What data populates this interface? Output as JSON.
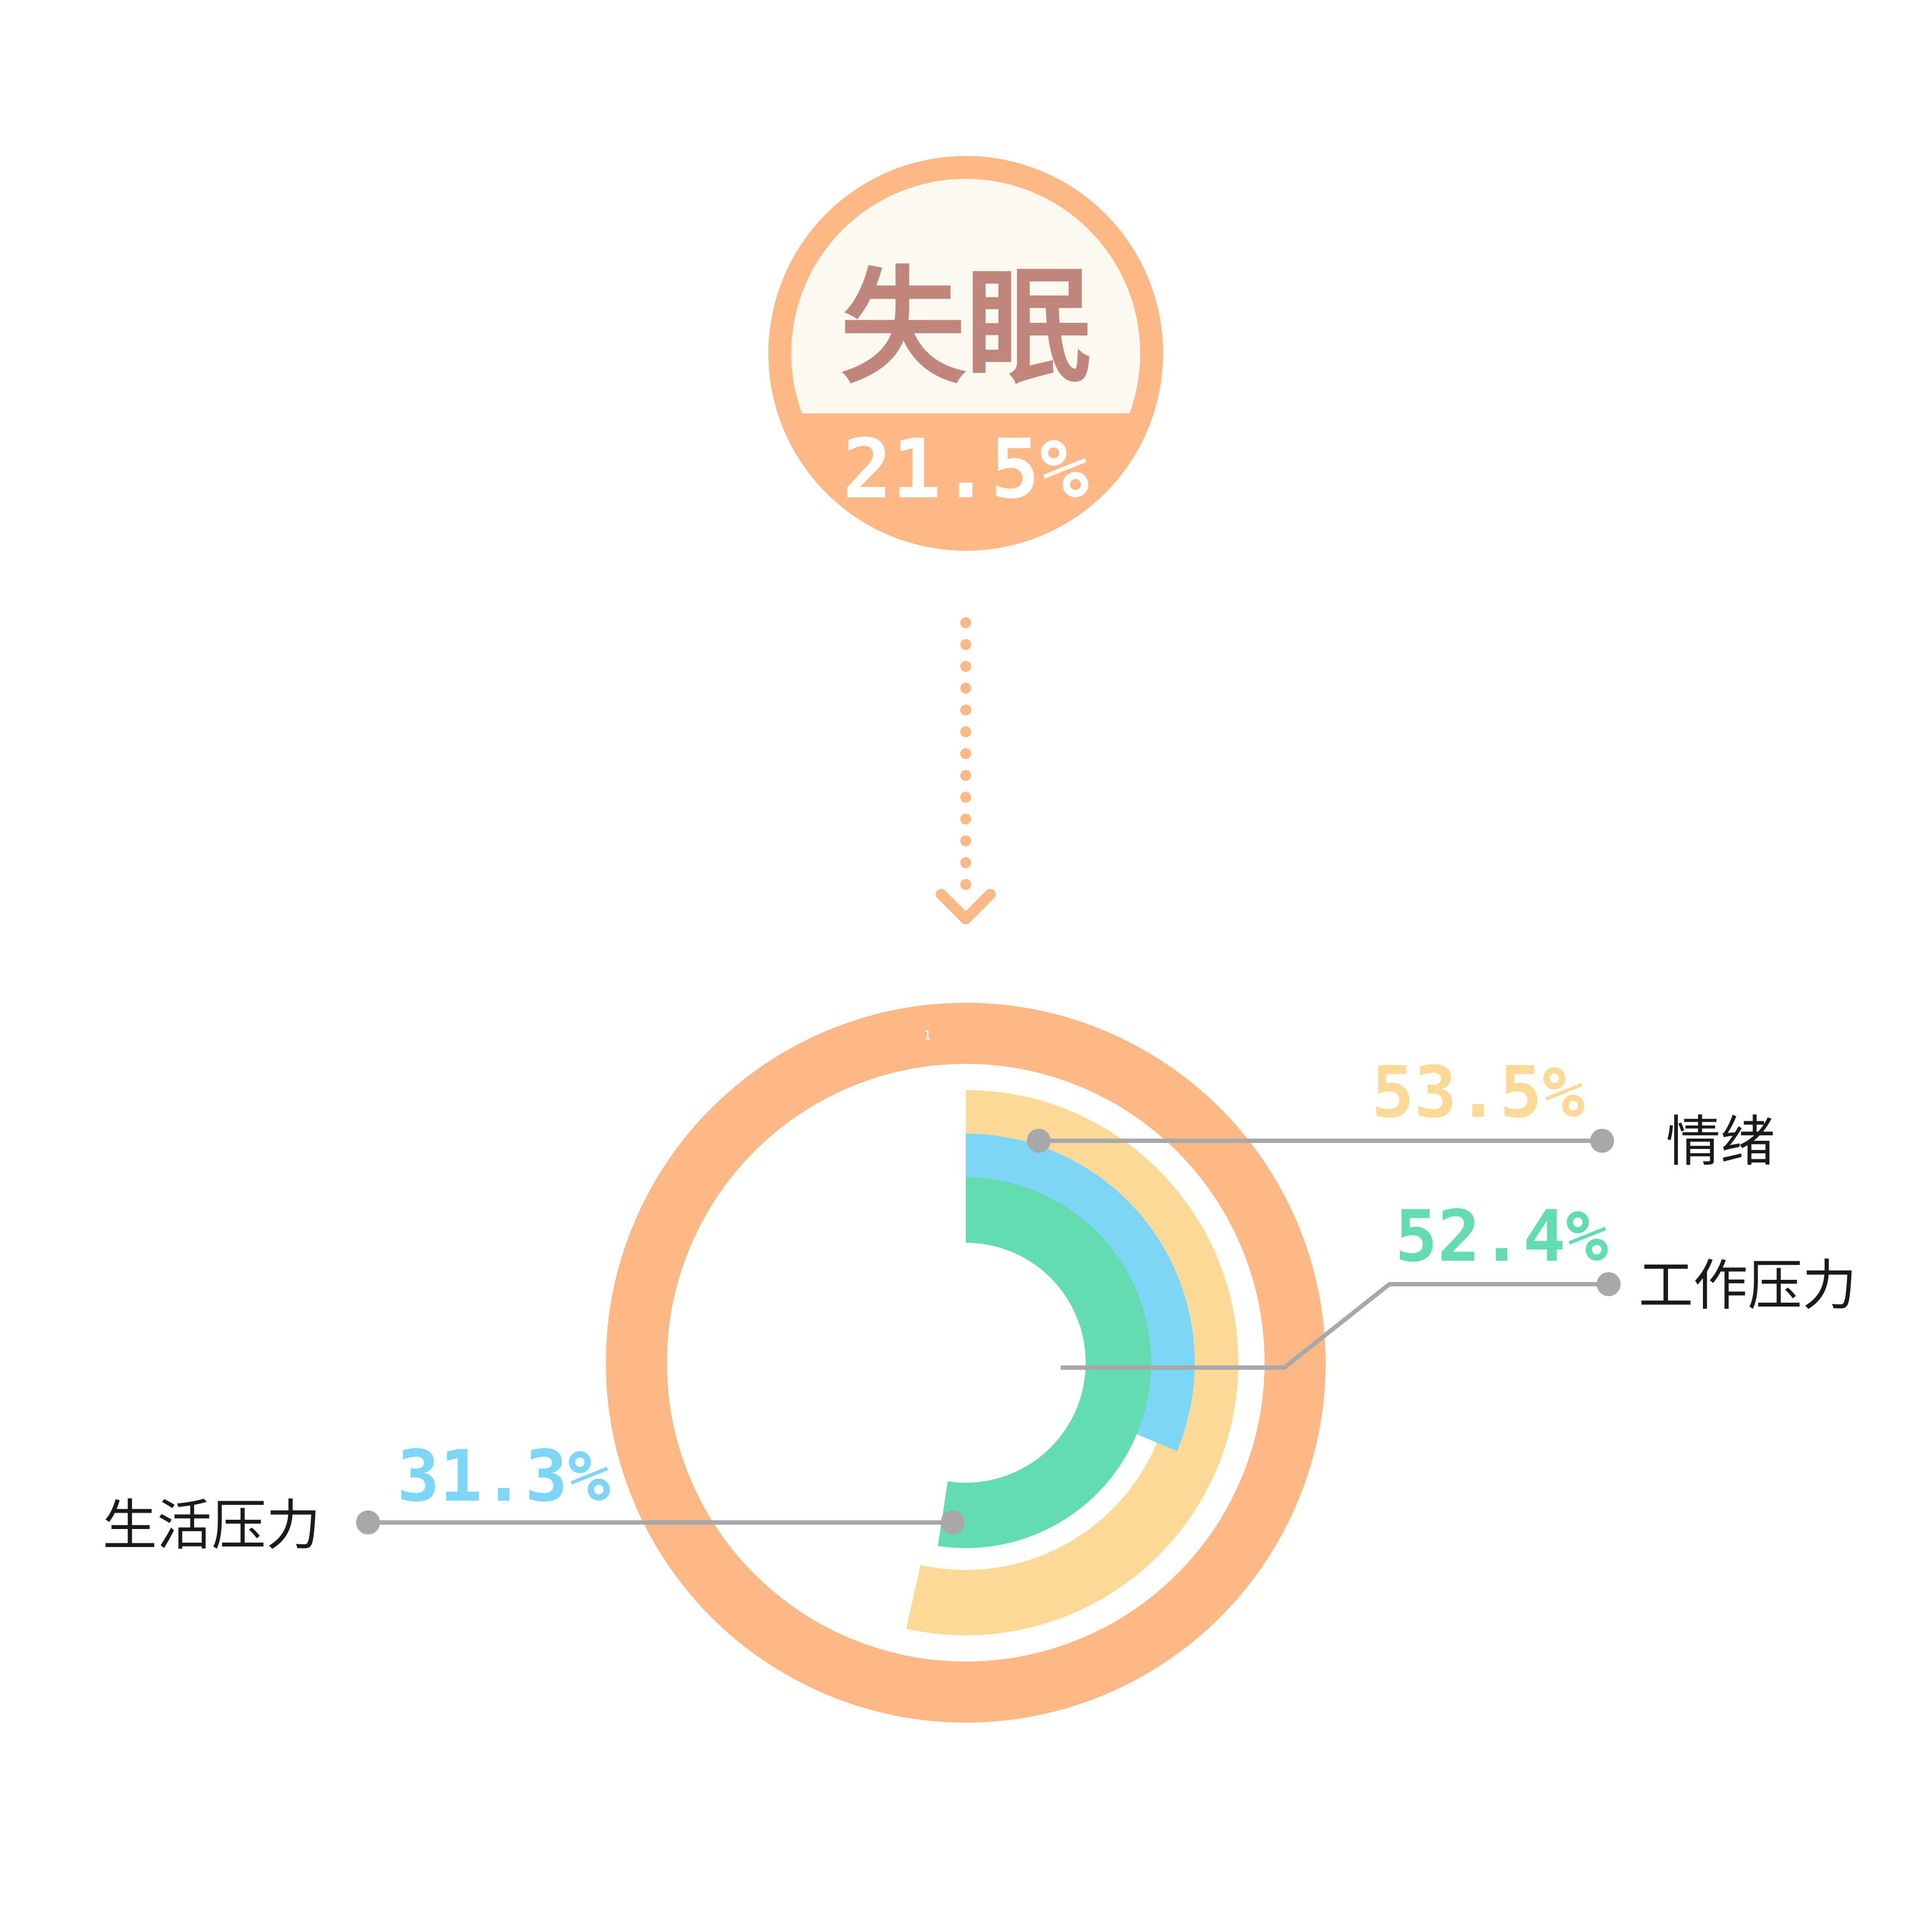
{
  "header": {
    "title": "失眠",
    "value_text": "21.5%"
  },
  "ring_tick_label": "1",
  "colors": {
    "accent": "#fdb886",
    "header_fill": "#fcfaf0",
    "title_text": "#c0867c",
    "connector": "#a8a8a8"
  },
  "chart_data": {
    "type": "radial-bar",
    "title": "失眠",
    "title_value": 21.5,
    "categories": [
      "情绪",
      "工作压力",
      "生活压力"
    ],
    "series": [
      {
        "name": "情绪",
        "value": 53.5,
        "label": "53.5%",
        "color": "#fcd997"
      },
      {
        "name": "工作压力",
        "value": 52.4,
        "label": "52.4%",
        "color": "#64dcb2"
      },
      {
        "name": "生活压力",
        "value": 31.3,
        "label": "31.3%",
        "color": "#7ed6f7"
      }
    ],
    "unit": "%",
    "legend": "none",
    "grid": false
  }
}
